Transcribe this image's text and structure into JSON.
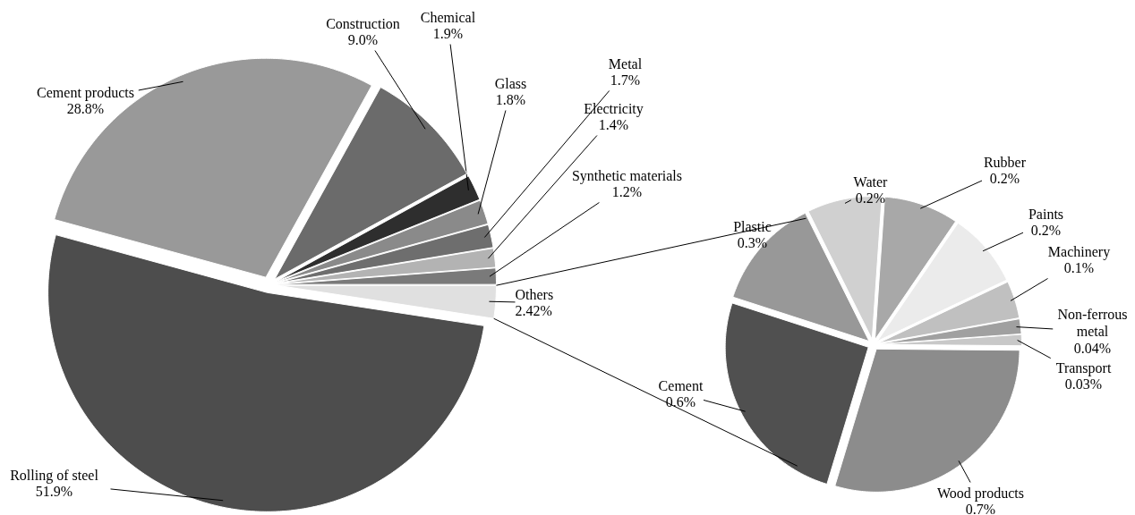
{
  "chart_data": [
    {
      "type": "pie",
      "categories": [
        "Others",
        "Synthetic materials",
        "Electricity",
        "Metal",
        "Glass",
        "Chemical",
        "Construction",
        "Cement products",
        "Rolling of steel"
      ],
      "values": [
        2.42,
        1.2,
        1.4,
        1.7,
        1.8,
        1.9,
        9.0,
        28.8,
        51.9
      ],
      "value_labels": [
        "2.42%",
        "1.2%",
        "1.4%",
        "1.7%",
        "1.8%",
        "1.9%",
        "9.0%",
        "28.8%",
        "51.9%"
      ],
      "colors": [
        "#e0e0e0",
        "#7a7a7a",
        "#b3b3b3",
        "#6e6e6e",
        "#8a8a8a",
        "#2e2e2e",
        "#6b6b6b",
        "#999999",
        "#4d4d4d"
      ]
    },
    {
      "type": "pie",
      "categories": [
        "Transport",
        "Non-ferrous metal",
        "Machinery",
        "Paints",
        "Rubber",
        "Water",
        "Plastic",
        "Cement",
        "Wood products"
      ],
      "values": [
        0.03,
        0.04,
        0.1,
        0.2,
        0.2,
        0.2,
        0.3,
        0.6,
        0.7
      ],
      "value_labels": [
        "0.03%",
        "0.04%",
        "0.1%",
        "0.2%",
        "0.2%",
        "0.2%",
        "0.3%",
        "0.6%",
        "0.7%"
      ],
      "colors": [
        "#c8c8c8",
        "#a0a0a0",
        "#c0c0c0",
        "#ebebeb",
        "#a8a8a8",
        "#d0d0d0",
        "#989898",
        "#505050",
        "#8c8c8c"
      ]
    }
  ]
}
